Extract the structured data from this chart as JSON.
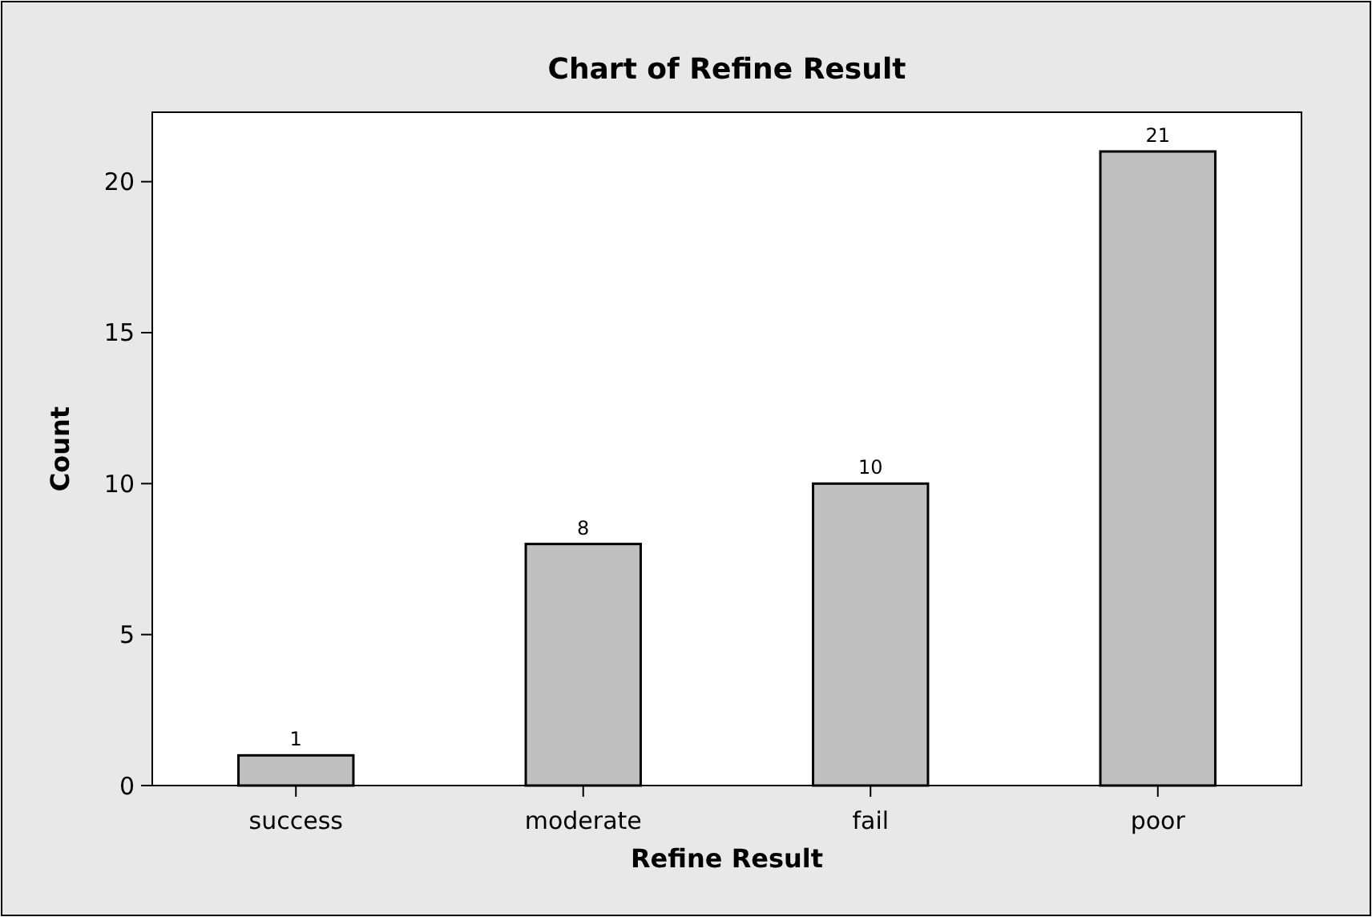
{
  "chart_data": {
    "type": "bar",
    "title": "Chart of Refine Result",
    "xlabel": "Refine Result",
    "ylabel": "Count",
    "categories": [
      "success",
      "moderate",
      "fail",
      "poor"
    ],
    "values": [
      1,
      8,
      10,
      21
    ],
    "color": "#c0c0c0",
    "ylim": [
      0,
      22.3
    ],
    "yticks": [
      0,
      5,
      10,
      15,
      20
    ],
    "grid": false,
    "data_labels": true
  }
}
